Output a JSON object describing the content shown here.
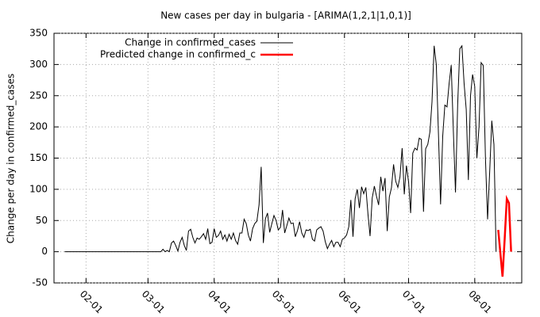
{
  "chart_data": {
    "type": "line",
    "title": "New cases per day in bulgaria -  [ARIMA(1,2,1|1,0,1)]",
    "y_label": "Change per day in confirmed_cases",
    "xlim": [
      "01-17",
      "08-23"
    ],
    "xticks": [
      "02-01",
      "03-01",
      "04-01",
      "05-01",
      "06-01",
      "07-01",
      "08-01"
    ],
    "ylim": [
      -50,
      350
    ],
    "yticks": [
      -50,
      0,
      50,
      100,
      150,
      200,
      250,
      300,
      350
    ],
    "grid": true,
    "legend": "top-left",
    "series": [
      {
        "name": "Change in confirmed_cases",
        "color": "#000000",
        "x": [
          "01-22",
          "01-23",
          "01-24",
          "01-25",
          "01-26",
          "01-27",
          "01-28",
          "01-29",
          "01-30",
          "01-31",
          "02-01",
          "02-02",
          "02-03",
          "02-04",
          "02-05",
          "02-06",
          "02-07",
          "02-08",
          "02-09",
          "02-10",
          "02-11",
          "02-12",
          "02-13",
          "02-14",
          "02-15",
          "02-16",
          "02-17",
          "02-18",
          "02-19",
          "02-20",
          "02-21",
          "02-22",
          "02-23",
          "02-24",
          "02-25",
          "02-26",
          "02-27",
          "02-28",
          "02-29",
          "03-01",
          "03-02",
          "03-03",
          "03-04",
          "03-05",
          "03-06",
          "03-07",
          "03-08",
          "03-09",
          "03-10",
          "03-11",
          "03-12",
          "03-13",
          "03-14",
          "03-15",
          "03-16",
          "03-17",
          "03-18",
          "03-19",
          "03-20",
          "03-21",
          "03-22",
          "03-23",
          "03-24",
          "03-25",
          "03-26",
          "03-27",
          "03-28",
          "03-29",
          "03-30",
          "03-31",
          "04-01",
          "04-02",
          "04-03",
          "04-04",
          "04-05",
          "04-06",
          "04-07",
          "04-08",
          "04-09",
          "04-10",
          "04-11",
          "04-12",
          "04-13",
          "04-14",
          "04-15",
          "04-16",
          "04-17",
          "04-18",
          "04-19",
          "04-20",
          "04-21",
          "04-22",
          "04-23",
          "04-24",
          "04-25",
          "04-26",
          "04-27",
          "04-28",
          "04-29",
          "04-30",
          "05-01",
          "05-02",
          "05-03",
          "05-04",
          "05-05",
          "05-06",
          "05-07",
          "05-08",
          "05-09",
          "05-10",
          "05-11",
          "05-12",
          "05-13",
          "05-14",
          "05-15",
          "05-16",
          "05-17",
          "05-18",
          "05-19",
          "05-20",
          "05-21",
          "05-22",
          "05-23",
          "05-24",
          "05-25",
          "05-26",
          "05-27",
          "05-28",
          "05-29",
          "05-30",
          "05-31",
          "06-01",
          "06-02",
          "06-03",
          "06-04",
          "06-05",
          "06-06",
          "06-07",
          "06-08",
          "06-09",
          "06-10",
          "06-11",
          "06-12",
          "06-13",
          "06-14",
          "06-15",
          "06-16",
          "06-17",
          "06-18",
          "06-19",
          "06-20",
          "06-21",
          "06-22",
          "06-23",
          "06-24",
          "06-25",
          "06-26",
          "06-27",
          "06-28",
          "06-29",
          "06-30",
          "07-01",
          "07-02",
          "07-03",
          "07-04",
          "07-05",
          "07-06",
          "07-07",
          "07-08",
          "07-09",
          "07-10",
          "07-11",
          "07-12",
          "07-13",
          "07-14",
          "07-15",
          "07-16",
          "07-17",
          "07-18",
          "07-19",
          "07-20",
          "07-21",
          "07-22",
          "07-23",
          "07-24",
          "07-25",
          "07-26",
          "07-27",
          "07-28",
          "07-29",
          "07-30",
          "07-31",
          "08-01",
          "08-02",
          "08-03",
          "08-04",
          "08-05",
          "08-06",
          "08-07",
          "08-08",
          "08-09",
          "08-10",
          "08-11"
        ],
        "values": [
          0,
          0,
          0,
          0,
          0,
          0,
          0,
          0,
          0,
          0,
          0,
          0,
          0,
          0,
          0,
          0,
          0,
          0,
          0,
          0,
          0,
          0,
          0,
          0,
          0,
          0,
          0,
          0,
          0,
          0,
          0,
          0,
          0,
          0,
          0,
          0,
          0,
          0,
          0,
          0,
          0,
          0,
          0,
          0,
          0,
          0,
          4,
          0,
          2,
          0,
          14,
          17,
          10,
          1,
          15,
          23,
          10,
          2,
          33,
          36,
          23,
          14,
          22,
          20,
          24,
          29,
          20,
          37,
          13,
          15,
          37,
          23,
          26,
          33,
          20,
          27,
          17,
          28,
          20,
          30,
          18,
          12,
          30,
          30,
          52,
          45,
          27,
          17,
          37,
          45,
          49,
          75,
          136,
          14,
          53,
          62,
          31,
          45,
          58,
          50,
          35,
          39,
          67,
          30,
          42,
          54,
          45,
          46,
          24,
          34,
          48,
          30,
          23,
          35,
          34,
          36,
          20,
          17,
          35,
          38,
          40,
          33,
          16,
          5,
          12,
          18,
          8,
          15,
          15,
          8,
          20,
          22,
          27,
          40,
          83,
          24,
          85,
          100,
          70,
          104,
          93,
          103,
          60,
          25,
          86,
          105,
          89,
          75,
          120,
          97,
          118,
          33,
          88,
          102,
          140,
          113,
          103,
          120,
          166,
          92,
          138,
          112,
          62,
          158,
          166,
          163,
          182,
          180,
          64,
          165,
          172,
          192,
          240,
          330,
          300,
          190,
          76,
          185,
          235,
          232,
          270,
          299,
          193,
          95,
          235,
          325,
          330,
          270,
          228,
          115,
          250,
          284,
          265,
          150,
          200,
          303,
          298,
          150,
          52,
          130,
          210,
          172,
          0
        ]
      },
      {
        "name": "Predicted change in confirmed_c",
        "color": "#ff0000",
        "x": [
          "08-12",
          "08-13",
          "08-14",
          "08-15",
          "08-16",
          "08-17",
          "08-18"
        ],
        "values": [
          35,
          -2,
          -40,
          20,
          85,
          78,
          0
        ]
      }
    ]
  }
}
